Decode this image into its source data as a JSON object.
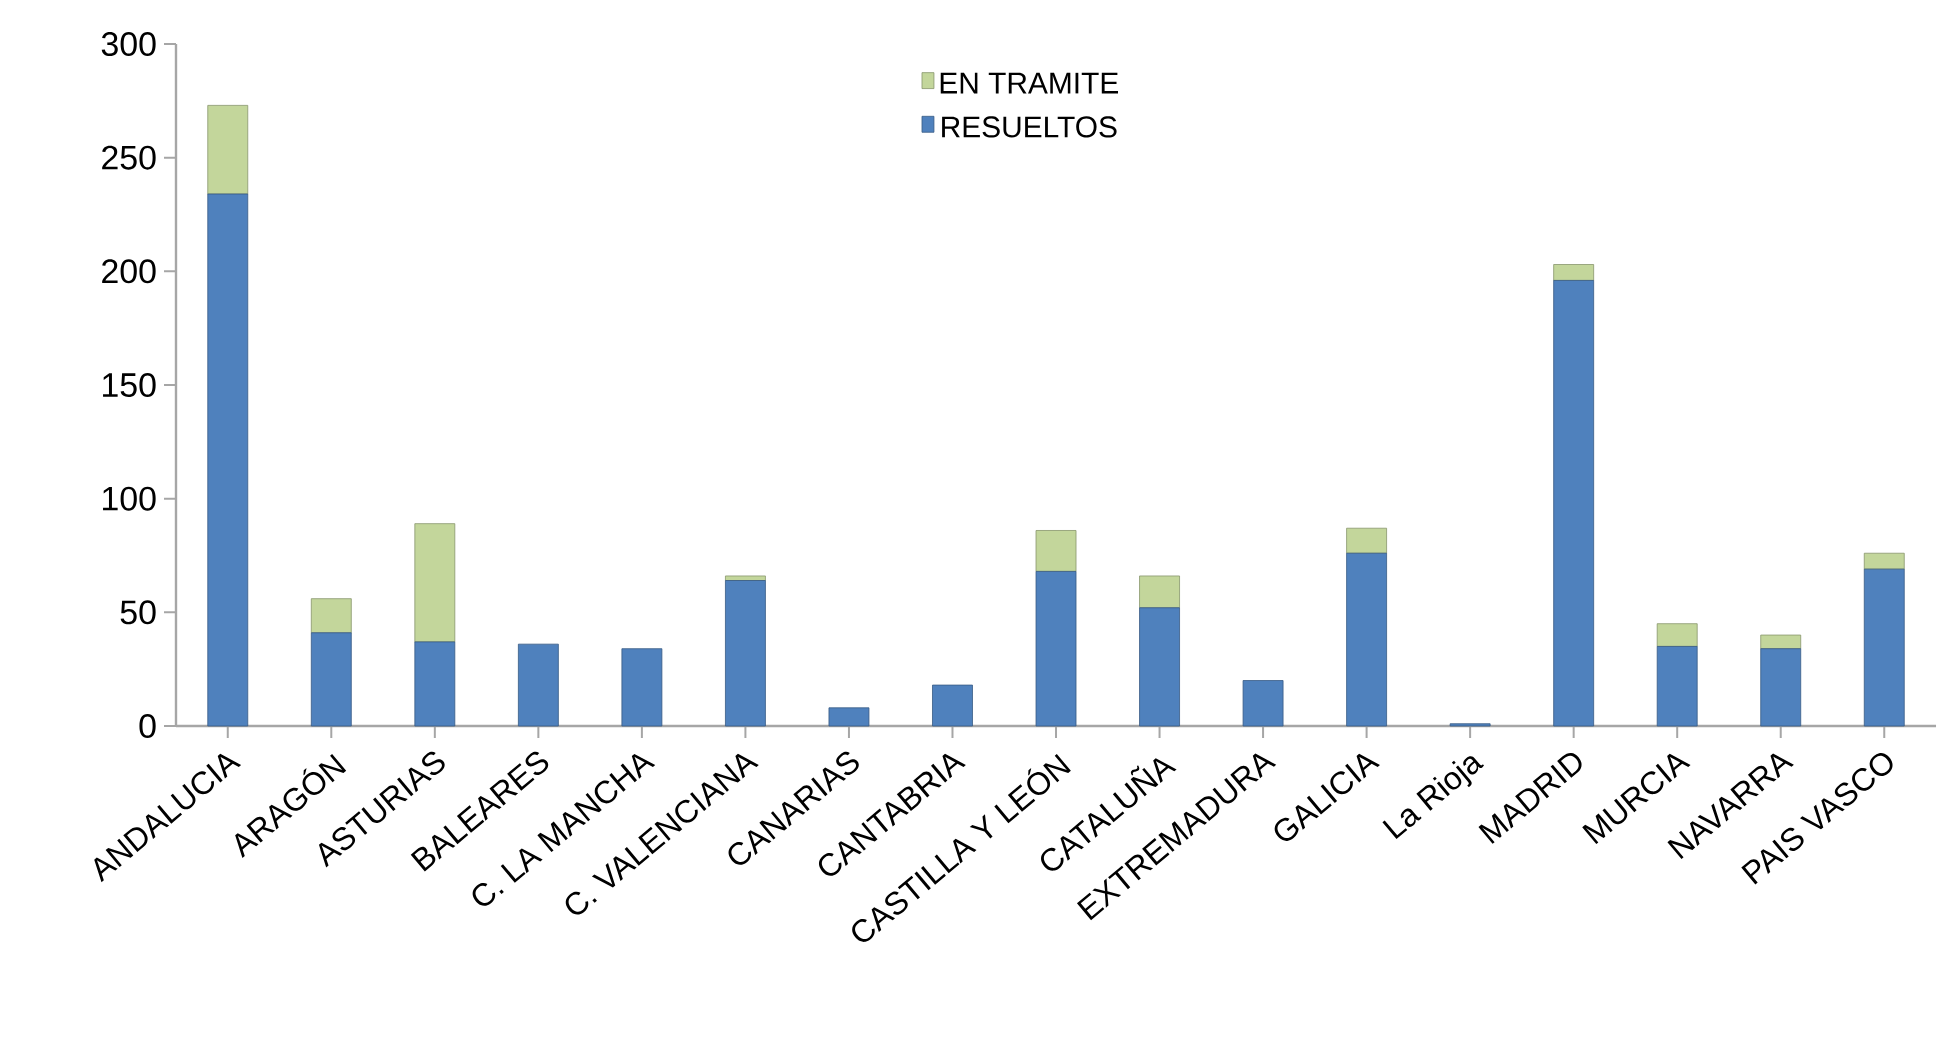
{
  "chart_data": {
    "type": "bar",
    "stacked": true,
    "categories": [
      "ANDALUCIA",
      "ARAGÓN",
      "ASTURIAS",
      "BALEARES",
      "C. LA MANCHA",
      "C. VALENCIANA",
      "CANARIAS",
      "CANTABRIA",
      "CASTILLA Y LEÓN",
      "CATALUÑA",
      "EXTREMADURA",
      "GALICIA",
      "La Rioja",
      "MADRID",
      "MURCIA",
      "NAVARRA",
      "PAIS VASCO"
    ],
    "series": [
      {
        "name": "RESUELTOS",
        "color": "#4f81bd",
        "values": [
          234,
          41,
          37,
          36,
          34,
          64,
          8,
          18,
          68,
          52,
          20,
          76,
          1,
          196,
          35,
          34,
          69
        ]
      },
      {
        "name": "EN TRAMITE",
        "color": "#c3d69b",
        "values": [
          39,
          15,
          52,
          0,
          0,
          2,
          0,
          0,
          18,
          14,
          0,
          11,
          0,
          7,
          10,
          6,
          7
        ]
      }
    ],
    "ylim": [
      0,
      300
    ],
    "yticks": [
      0,
      50,
      100,
      150,
      200,
      250,
      300
    ],
    "grid": false,
    "legend": "top"
  }
}
